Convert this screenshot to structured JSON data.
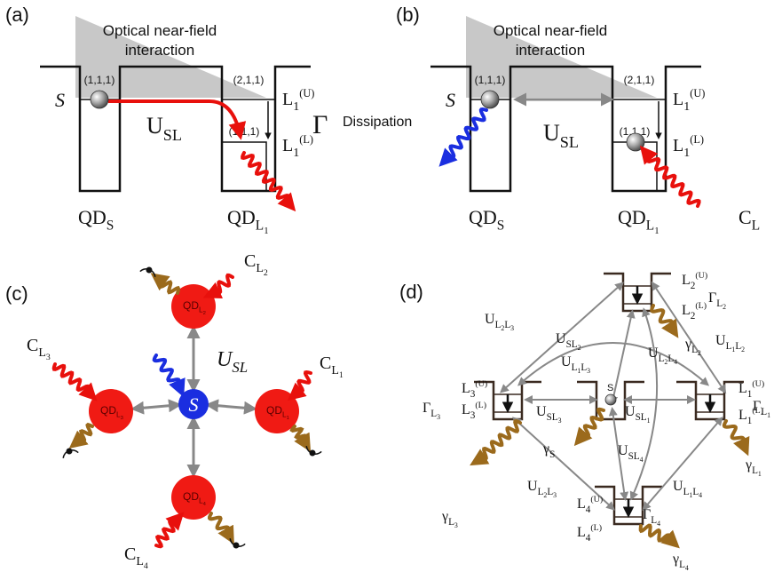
{
  "panel_a": {
    "label": "(a)",
    "title": [
      "Optical near-field",
      "interaction"
    ],
    "states": [
      "(1,1,1)",
      "(2,1,1)",
      "(1,1,1)"
    ],
    "dot": "S",
    "coupling": {
      "t": "U",
      "sub": "SL"
    },
    "upper": {
      "t": "L",
      "sub": "1",
      "sup": "(U)"
    },
    "lower": {
      "t": "L",
      "sub": "1",
      "sup": "(L)"
    },
    "gamma": "Γ",
    "dissipation": "Dissipation",
    "qd_s": {
      "t": "QD",
      "sub": "S"
    },
    "qd_l": {
      "t": "QD",
      "sub": {
        "t": "L",
        "sub": "1"
      }
    }
  },
  "panel_b": {
    "label": "(b)",
    "title": [
      "Optical near-field",
      "interaction"
    ],
    "states": [
      "(1,1,1)",
      "(2,1,1)",
      "(1,1,1)"
    ],
    "dot": "S",
    "coupling": {
      "t": "U",
      "sub": "SL"
    },
    "upper": {
      "t": "L",
      "sub": "1",
      "sup": "(U)"
    },
    "lower": {
      "t": "L",
      "sub": "1",
      "sup": "(L)"
    },
    "qd_s": {
      "t": "QD",
      "sub": "S"
    },
    "qd_l": {
      "t": "QD",
      "sub": {
        "t": "L",
        "sub": "1"
      }
    },
    "source": {
      "t": "C",
      "sub": "L"
    }
  },
  "panel_c": {
    "label": "(c)",
    "center": "S",
    "coupling": {
      "t": "U",
      "sub": "SL"
    },
    "dots": [
      {
        "t": "QD",
        "sub": {
          "t": "L",
          "sub": "2"
        }
      },
      {
        "t": "QD",
        "sub": {
          "t": "L",
          "sub": "1"
        }
      },
      {
        "t": "QD",
        "sub": {
          "t": "L",
          "sub": "3"
        }
      },
      {
        "t": "QD",
        "sub": {
          "t": "L",
          "sub": "4"
        }
      }
    ],
    "sources": [
      {
        "t": "C",
        "sub": {
          "t": "L",
          "sub": "2"
        }
      },
      {
        "t": "C",
        "sub": {
          "t": "L",
          "sub": "1"
        }
      },
      {
        "t": "C",
        "sub": {
          "t": "L",
          "sub": "3"
        }
      },
      {
        "t": "C",
        "sub": {
          "t": "L",
          "sub": "4"
        }
      }
    ]
  },
  "panel_d": {
    "label": "(d)",
    "center": "S",
    "labels": [
      {
        "t": "U",
        "sub": [
          {
            "t": "L",
            "sub": "2"
          },
          {
            "t": "L",
            "sub": "3"
          }
        ]
      },
      {
        "t": "U",
        "sub": [
          "S",
          {
            "t": "L",
            "sub": "2"
          }
        ]
      },
      {
        "t": "U",
        "sub": [
          {
            "t": "L",
            "sub": "2"
          },
          {
            "t": "L",
            "sub": "4"
          }
        ]
      },
      {
        "t": "U",
        "sub": [
          {
            "t": "L",
            "sub": "1"
          },
          {
            "t": "L",
            "sub": "2"
          }
        ]
      },
      {
        "t": "L",
        "sub": "2",
        "sup": "(U)"
      },
      {
        "t": "L",
        "sub": "2",
        "sup": "(L)"
      },
      {
        "t": "Γ",
        "sub": {
          "t": "L",
          "sub": "2"
        }
      },
      {
        "t": "γ",
        "sub": {
          "t": "L",
          "sub": "2"
        }
      },
      {
        "t": "U",
        "sub": [
          {
            "t": "L",
            "sub": "1"
          },
          {
            "t": "L",
            "sub": "3"
          }
        ]
      },
      {
        "t": "L",
        "sub": "3",
        "sup": "(U)"
      },
      {
        "t": "L",
        "sub": "3",
        "sup": "(L)"
      },
      {
        "t": "Γ",
        "sub": {
          "t": "L",
          "sub": "3"
        }
      },
      {
        "t": "γ",
        "sub": {
          "t": "L",
          "sub": "3"
        }
      },
      {
        "t": "U",
        "sub": [
          "S",
          {
            "t": "L",
            "sub": "3"
          }
        ]
      },
      {
        "t": "U",
        "sub": [
          "S",
          {
            "t": "L",
            "sub": "1"
          }
        ]
      },
      {
        "t": "U",
        "sub": [
          "S",
          {
            "t": "L",
            "sub": "4"
          }
        ]
      },
      {
        "t": "γ",
        "sub": "S"
      },
      {
        "t": "L",
        "sub": "1",
        "sup": "(U)"
      },
      {
        "t": "L",
        "sub": "1",
        "sup": "(L)"
      },
      {
        "t": "Γ",
        "sub": {
          "t": "L",
          "sub": "1"
        }
      },
      {
        "t": "γ",
        "sub": {
          "t": "L",
          "sub": "1"
        }
      },
      {
        "t": "U",
        "sub": [
          {
            "t": "L",
            "sub": "2"
          },
          {
            "t": "L",
            "sub": "3"
          }
        ]
      },
      {
        "t": "U",
        "sub": [
          {
            "t": "L",
            "sub": "1"
          },
          {
            "t": "L",
            "sub": "4"
          }
        ]
      },
      {
        "t": "L",
        "sub": "4",
        "sup": "(U)"
      },
      {
        "t": "L",
        "sub": "4",
        "sup": "(L)"
      },
      {
        "t": "Γ",
        "sub": {
          "t": "L",
          "sub": "4"
        }
      },
      {
        "t": "γ",
        "sub": {
          "t": "L",
          "sub": "4"
        }
      }
    ]
  }
}
